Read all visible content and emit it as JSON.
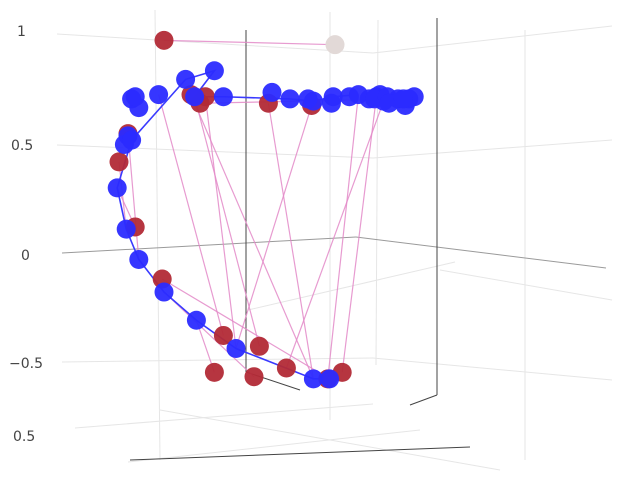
{
  "chart_data": {
    "type": "scatter",
    "title": "",
    "xlabel": "",
    "ylabel": "",
    "grid": true,
    "legend": "none",
    "ylim": [
      -0.6,
      1.05
    ],
    "y_ticks": [
      {
        "value": 1,
        "label": "1"
      },
      {
        "value": 0.5,
        "label": "0.5"
      },
      {
        "value": 0,
        "label": "0"
      },
      {
        "value": -0.5,
        "label": "−0.5"
      }
    ],
    "depth_tick": {
      "label": "0.5"
    },
    "colors": {
      "blue_marker": "#2b2bff",
      "blue_line": "#3a3aff",
      "red_marker": "#b22a36",
      "light_marker": "#e2d9d7",
      "pink_line": "#e38ac8"
    },
    "blue_series": {
      "name": "",
      "x": [
        -0.92,
        -0.9,
        -0.84,
        -0.88,
        -0.86,
        -0.73,
        -0.53,
        -0.37,
        0.0,
        0.13,
        0.24,
        0.38,
        0.48,
        0.52,
        0.64,
        0.69,
        0.66,
        0.22,
        0.13,
        -0.3,
        -0.52,
        -0.7,
        -0.84,
        -0.91,
        -0.96,
        -0.88,
        -0.58,
        -0.42,
        -0.1,
        0.1,
        0.23,
        0.33,
        0.44,
        0.5,
        0.47,
        0.54,
        0.6,
        0.55,
        0.63
      ],
      "y": [
        0.5,
        0.54,
        0.67,
        0.71,
        0.72,
        0.73,
        0.72,
        0.72,
        0.71,
        0.7,
        0.72,
        0.73,
        0.72,
        0.7,
        0.68,
        0.72,
        0.71,
        -0.58,
        -0.58,
        -0.44,
        -0.31,
        -0.18,
        -0.03,
        0.11,
        0.3,
        0.52,
        0.8,
        0.84,
        0.74,
        0.71,
        0.69,
        0.72,
        0.71,
        0.73,
        0.71,
        0.72,
        0.71,
        0.69,
        0.71
      ]
    },
    "red_series": {
      "name": "",
      "x": [
        -0.7,
        -0.55,
        -0.47,
        -0.42,
        -0.2,
        -0.9,
        -0.95,
        -0.86,
        -0.71,
        -0.17,
        -0.37,
        0.21,
        0.29,
        -0.02,
        -0.5,
        -0.12,
        0.12
      ],
      "y": [
        0.98,
        0.73,
        0.72,
        -0.55,
        -0.57,
        0.55,
        0.42,
        0.12,
        -0.12,
        -0.43,
        -0.38,
        -0.58,
        -0.55,
        -0.53,
        0.69,
        0.69,
        0.68
      ]
    },
    "light_point": {
      "x": 0.25,
      "y": 0.96
    }
  }
}
